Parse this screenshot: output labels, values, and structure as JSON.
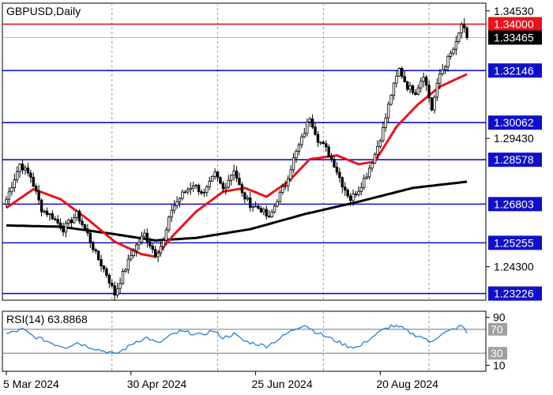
{
  "chart_data": {
    "type": "candlestick",
    "title": "GBPUSD,Daily",
    "colors": {
      "candles": "#000000",
      "ma_fast": "#e8141c",
      "ma_slow": "#000000",
      "levels": "#1010c8",
      "resistance": "#e8141c",
      "rsi": "#2a7fd4",
      "tag_blue": "#1010c8",
      "tag_red": "#e8141c",
      "tag_black": "#000000",
      "grid": "#999999"
    },
    "price_axis": {
      "range": [
        1.2296,
        1.3484
      ],
      "ticks": [
        {
          "value": 1.3453,
          "label": "1.34530"
        },
        {
          "value": 1.2943,
          "label": "1.29430"
        },
        {
          "value": 1.243,
          "label": "1.24300"
        }
      ]
    },
    "x_axis_labels": [
      "5 Mar 2024",
      "30 Apr 2024",
      "25 Jun 2024",
      "20 Aug 2024"
    ],
    "levels": [
      {
        "value": 1.34,
        "label": "1.34000",
        "kind": "resistance"
      },
      {
        "value": 1.32146,
        "label": "1.32146",
        "kind": "level"
      },
      {
        "value": 1.30062,
        "label": "1.30062",
        "kind": "level"
      },
      {
        "value": 1.28578,
        "label": "1.28578",
        "kind": "level"
      },
      {
        "value": 1.26803,
        "label": "1.26803",
        "kind": "level"
      },
      {
        "value": 1.25255,
        "label": "1.25255",
        "kind": "level"
      },
      {
        "value": 1.23226,
        "label": "1.23226",
        "kind": "level"
      }
    ],
    "current_price": {
      "value": 1.33465,
      "label": "1.33465"
    },
    "rsi": {
      "label": "RSI(14) 63.8868",
      "range": [
        0,
        100
      ],
      "levels": [
        {
          "value": 70,
          "label": "70"
        },
        {
          "value": 30,
          "label": "30"
        }
      ],
      "ticks": [
        {
          "value": 90,
          "label": "90"
        },
        {
          "value": 10,
          "label": "10"
        }
      ]
    },
    "close_anchors": [
      [
        0,
        1.27
      ],
      [
        5,
        1.284
      ],
      [
        9,
        1.279
      ],
      [
        13,
        1.266
      ],
      [
        17,
        1.263
      ],
      [
        21,
        1.258
      ],
      [
        26,
        1.264
      ],
      [
        30,
        1.256
      ],
      [
        33,
        1.248
      ],
      [
        37,
        1.24
      ],
      [
        40,
        1.232
      ],
      [
        43,
        1.24
      ],
      [
        47,
        1.25
      ],
      [
        51,
        1.256
      ],
      [
        55,
        1.248
      ],
      [
        58,
        1.253
      ],
      [
        61,
        1.266
      ],
      [
        65,
        1.272
      ],
      [
        69,
        1.276
      ],
      [
        73,
        1.272
      ],
      [
        77,
        1.28
      ],
      [
        80,
        1.274
      ],
      [
        84,
        1.282
      ],
      [
        87,
        1.272
      ],
      [
        90,
        1.268
      ],
      [
        94,
        1.266
      ],
      [
        97,
        1.262
      ],
      [
        100,
        1.27
      ],
      [
        103,
        1.276
      ],
      [
        106,
        1.286
      ],
      [
        109,
        1.294
      ],
      [
        112,
        1.303
      ],
      [
        115,
        1.294
      ],
      [
        118,
        1.29
      ],
      [
        121,
        1.284
      ],
      [
        124,
        1.276
      ],
      [
        127,
        1.27
      ],
      [
        130,
        1.274
      ],
      [
        133,
        1.28
      ],
      [
        136,
        1.288
      ],
      [
        139,
        1.298
      ],
      [
        142,
        1.312
      ],
      [
        145,
        1.322
      ],
      [
        148,
        1.315
      ],
      [
        151,
        1.313
      ],
      [
        154,
        1.32
      ],
      [
        157,
        1.306
      ],
      [
        160,
        1.32
      ],
      [
        163,
        1.326
      ],
      [
        166,
        1.332
      ],
      [
        168,
        1.34
      ],
      [
        170,
        1.3346
      ]
    ],
    "ma_fast_anchors": [
      [
        0,
        1.2665
      ],
      [
        10,
        1.274
      ],
      [
        20,
        1.27
      ],
      [
        30,
        1.262
      ],
      [
        40,
        1.253
      ],
      [
        50,
        1.248
      ],
      [
        55,
        1.247
      ],
      [
        62,
        1.256
      ],
      [
        70,
        1.265
      ],
      [
        80,
        1.273
      ],
      [
        88,
        1.2745
      ],
      [
        96,
        1.271
      ],
      [
        104,
        1.277
      ],
      [
        112,
        1.286
      ],
      [
        122,
        1.2875
      ],
      [
        130,
        1.284
      ],
      [
        136,
        1.285
      ],
      [
        144,
        1.299
      ],
      [
        152,
        1.308
      ],
      [
        160,
        1.315
      ],
      [
        170,
        1.32
      ]
    ],
    "ma_slow_anchors": [
      [
        0,
        1.2595
      ],
      [
        20,
        1.259
      ],
      [
        40,
        1.256
      ],
      [
        55,
        1.2535
      ],
      [
        70,
        1.2545
      ],
      [
        90,
        1.258
      ],
      [
        110,
        1.264
      ],
      [
        130,
        1.269
      ],
      [
        150,
        1.2745
      ],
      [
        170,
        1.277
      ]
    ],
    "rsi_anchors": [
      [
        0,
        62
      ],
      [
        6,
        70
      ],
      [
        10,
        58
      ],
      [
        14,
        52
      ],
      [
        18,
        45
      ],
      [
        22,
        40
      ],
      [
        26,
        48
      ],
      [
        30,
        42
      ],
      [
        34,
        36
      ],
      [
        38,
        32
      ],
      [
        40,
        28
      ],
      [
        44,
        38
      ],
      [
        48,
        50
      ],
      [
        52,
        56
      ],
      [
        56,
        46
      ],
      [
        60,
        58
      ],
      [
        64,
        66
      ],
      [
        68,
        64
      ],
      [
        72,
        60
      ],
      [
        76,
        68
      ],
      [
        80,
        56
      ],
      [
        84,
        62
      ],
      [
        88,
        50
      ],
      [
        92,
        46
      ],
      [
        96,
        42
      ],
      [
        100,
        52
      ],
      [
        104,
        64
      ],
      [
        108,
        74
      ],
      [
        110,
        78
      ],
      [
        114,
        66
      ],
      [
        118,
        58
      ],
      [
        122,
        50
      ],
      [
        126,
        42
      ],
      [
        130,
        40
      ],
      [
        134,
        54
      ],
      [
        138,
        66
      ],
      [
        142,
        76
      ],
      [
        146,
        72
      ],
      [
        150,
        62
      ],
      [
        154,
        56
      ],
      [
        156,
        48
      ],
      [
        160,
        60
      ],
      [
        164,
        68
      ],
      [
        168,
        76
      ],
      [
        170,
        64
      ]
    ]
  }
}
